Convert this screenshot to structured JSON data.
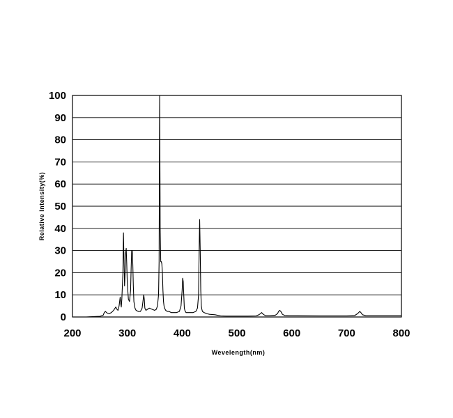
{
  "chart_data": {
    "type": "line",
    "title": "",
    "xlabel": "Wevelength(nm)",
    "ylabel": "Relative Intensity(%)",
    "xlim": [
      200,
      800
    ],
    "ylim": [
      0,
      100
    ],
    "x_ticks": [
      200,
      300,
      400,
      500,
      600,
      700,
      800
    ],
    "y_ticks": [
      0,
      10,
      20,
      30,
      40,
      50,
      60,
      70,
      80,
      90,
      100
    ],
    "grid": "horizontal",
    "line_color": "#000000",
    "series": [
      {
        "x": [
          200,
          225,
          250,
          256,
          258,
          260,
          263,
          267,
          271,
          275,
          279,
          281,
          283,
          285,
          287,
          288,
          289,
          290,
          292,
          293,
          294,
          295,
          296,
          297,
          298,
          299,
          300,
          302,
          304,
          306,
          307,
          308,
          309,
          310,
          311,
          312,
          314,
          316,
          320,
          324,
          327,
          329,
          330,
          331,
          332,
          334,
          337,
          340,
          345,
          350,
          353,
          355,
          357,
          358,
          359,
          360,
          361,
          362,
          363,
          364,
          365,
          366,
          367,
          368,
          370,
          373,
          376,
          380,
          385,
          390,
          395,
          398,
          400,
          401,
          402,
          403,
          404,
          405,
          407,
          410,
          415,
          420,
          425,
          428,
          430,
          431,
          432,
          433,
          434,
          435,
          436,
          437,
          440,
          445,
          450,
          460,
          470,
          480,
          490,
          500,
          520,
          535,
          540,
          543,
          545,
          548,
          552,
          560,
          570,
          574,
          576,
          578,
          580,
          583,
          587,
          595,
          610,
          650,
          700,
          715,
          720,
          722,
          724,
          726,
          729,
          735,
          760,
          800
        ],
        "y": [
          0,
          0,
          0.3,
          0.8,
          2.0,
          2.5,
          1.8,
          1.5,
          2.0,
          3.0,
          4.5,
          3.5,
          3.0,
          5.0,
          9.0,
          6.0,
          4.5,
          8.0,
          20.0,
          38.0,
          25.0,
          14.0,
          20.0,
          29.0,
          31.0,
          24.0,
          15.0,
          8.0,
          7.0,
          12.0,
          22.0,
          30.0,
          30.0,
          24.0,
          14.0,
          7.0,
          4.0,
          3.0,
          2.5,
          2.5,
          4.0,
          8.0,
          10.0,
          8.0,
          4.0,
          3.0,
          3.5,
          4.0,
          3.5,
          3.0,
          3.5,
          5.0,
          10.0,
          25.0,
          100.0,
          40.0,
          25.0,
          25.0,
          24.0,
          20.0,
          12.0,
          7.0,
          5.0,
          4.0,
          3.0,
          2.5,
          2.5,
          2.0,
          2.0,
          2.0,
          2.5,
          5.0,
          12.0,
          17.5,
          16.0,
          10.0,
          4.0,
          3.0,
          2.0,
          2.0,
          2.0,
          2.0,
          2.5,
          4.0,
          10.0,
          30.0,
          44.0,
          30.0,
          12.0,
          5.0,
          3.5,
          2.5,
          2.0,
          1.5,
          1.2,
          1.0,
          0.5,
          0.4,
          0.4,
          0.4,
          0.4,
          0.5,
          1.0,
          1.5,
          2.0,
          1.2,
          0.6,
          0.6,
          0.8,
          1.5,
          2.5,
          3.0,
          2.5,
          1.2,
          0.7,
          0.6,
          0.6,
          0.5,
          0.5,
          0.7,
          1.5,
          2.0,
          2.5,
          2.0,
          1.0,
          0.6,
          0.6,
          0.6
        ]
      }
    ]
  }
}
